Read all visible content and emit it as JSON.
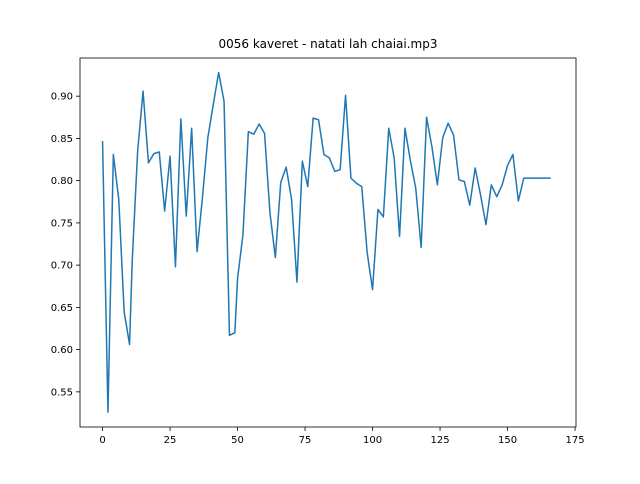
{
  "chart_data": {
    "type": "line",
    "title": "0056 kaveret - natati lah chaiai.mp3",
    "xlabel": "",
    "ylabel": "",
    "xlim": [
      -8.35,
      175.35
    ],
    "ylim": [
      0.5084,
      0.9452
    ],
    "xticks": [
      0,
      25,
      50,
      75,
      100,
      125,
      150,
      175
    ],
    "yticks": [
      0.55,
      0.6,
      0.65,
      0.7,
      0.75,
      0.8,
      0.85,
      0.9
    ],
    "grid": false,
    "legend": "none",
    "series": [
      {
        "color": "#1f77b4",
        "x": [
          0,
          2,
          4,
          6,
          8,
          10,
          11,
          13,
          15,
          17,
          19,
          21,
          23,
          25,
          27,
          29,
          31,
          33,
          35,
          37,
          39,
          41,
          43,
          45,
          47,
          49,
          50,
          52,
          54,
          56,
          58,
          60,
          62,
          64,
          66,
          68,
          70,
          72,
          74,
          76,
          78,
          80,
          82,
          84,
          86,
          88,
          90,
          92,
          94,
          96,
          98,
          100,
          102,
          104,
          106,
          108,
          110,
          112,
          114,
          116,
          118,
          120,
          122,
          124,
          126,
          128,
          130,
          132,
          134,
          136,
          138,
          140,
          142,
          144,
          146,
          148,
          150,
          152,
          154,
          156,
          158,
          160,
          162,
          164,
          166
        ],
        "y": [
          0.847,
          0.526,
          0.831,
          0.778,
          0.645,
          0.606,
          0.706,
          0.835,
          0.906,
          0.821,
          0.832,
          0.834,
          0.764,
          0.829,
          0.698,
          0.873,
          0.758,
          0.862,
          0.716,
          0.78,
          0.851,
          0.89,
          0.928,
          0.894,
          0.617,
          0.62,
          0.684,
          0.736,
          0.858,
          0.855,
          0.867,
          0.856,
          0.762,
          0.709,
          0.798,
          0.816,
          0.778,
          0.68,
          0.823,
          0.793,
          0.874,
          0.872,
          0.831,
          0.827,
          0.811,
          0.813,
          0.901,
          0.803,
          0.797,
          0.793,
          0.715,
          0.671,
          0.766,
          0.757,
          0.862,
          0.827,
          0.734,
          0.862,
          0.824,
          0.791,
          0.721,
          0.875,
          0.84,
          0.795,
          0.851,
          0.868,
          0.854,
          0.801,
          0.799,
          0.771,
          0.815,
          0.783,
          0.748,
          0.795,
          0.781,
          0.795,
          0.818,
          0.831,
          0.776,
          0.803,
          0.803,
          0.803,
          0.803,
          0.803,
          0.803
        ]
      }
    ]
  }
}
